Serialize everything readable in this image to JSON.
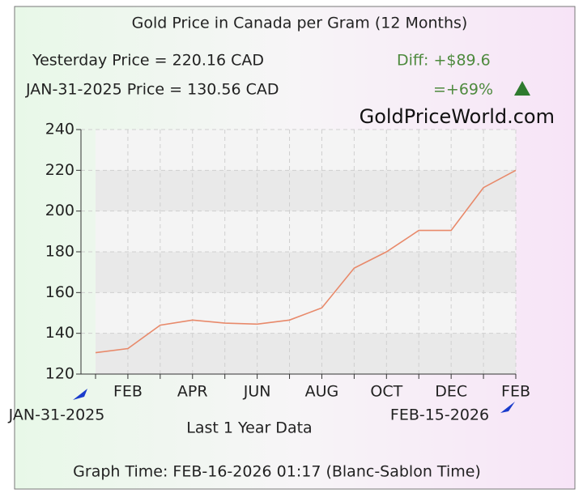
{
  "chart_data": {
    "type": "line",
    "title": "Gold Price in Canada per Gram (12 Months)",
    "annotations": [
      "Yesterday Price = 220.16 CAD",
      "Diff: +$89.6",
      "JAN-31-2025 Price = 130.56 CAD",
      "=+69%"
    ],
    "watermark": "GoldPriceWorld.com",
    "range_start": "JAN-31-2025",
    "range_end": "FEB-15-2026",
    "xlabel": "Last 1 Year Data",
    "footer": "Graph Time: FEB-16-2026 01:17 (Blanc-Sablon Time)",
    "categories": [
      null,
      "FEB",
      null,
      "APR",
      null,
      "JUN",
      null,
      "AUG",
      null,
      "OCT",
      null,
      "DEC",
      null,
      "FEB"
    ],
    "series": [
      {
        "color": "#e8896a",
        "values": [
          130.5,
          132.5,
          144,
          146.5,
          145,
          144.5,
          146.5,
          152.5,
          172,
          180,
          190.5,
          190.5,
          211.5,
          220
        ]
      }
    ],
    "ylim": [
      120,
      240
    ],
    "yticks": [
      120,
      140,
      160,
      180,
      200,
      220,
      240
    ],
    "grid": true
  }
}
